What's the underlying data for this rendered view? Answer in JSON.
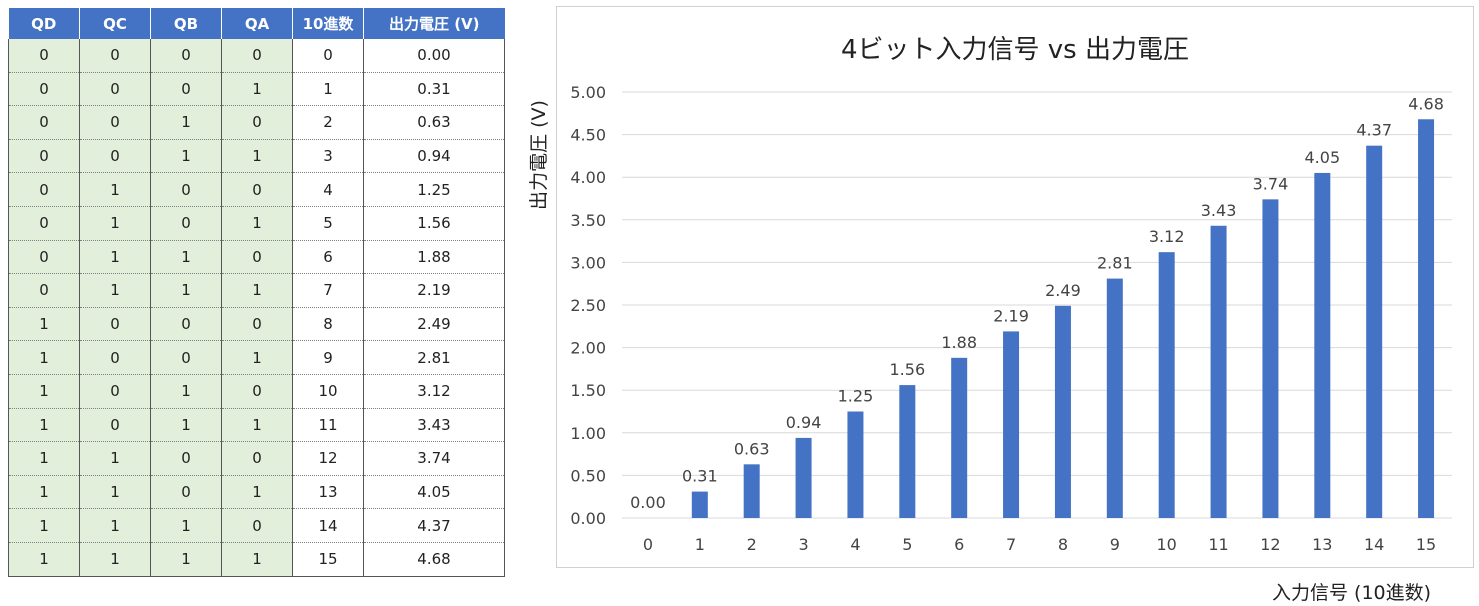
{
  "table": {
    "headers": [
      "QD",
      "QC",
      "QB",
      "QA",
      "10進数",
      "出力電圧 (V)"
    ],
    "rows": [
      [
        "0",
        "0",
        "0",
        "0",
        "0",
        "0.00"
      ],
      [
        "0",
        "0",
        "0",
        "1",
        "1",
        "0.31"
      ],
      [
        "0",
        "0",
        "1",
        "0",
        "2",
        "0.63"
      ],
      [
        "0",
        "0",
        "1",
        "1",
        "3",
        "0.94"
      ],
      [
        "0",
        "1",
        "0",
        "0",
        "4",
        "1.25"
      ],
      [
        "0",
        "1",
        "0",
        "1",
        "5",
        "1.56"
      ],
      [
        "0",
        "1",
        "1",
        "0",
        "6",
        "1.88"
      ],
      [
        "0",
        "1",
        "1",
        "1",
        "7",
        "2.19"
      ],
      [
        "1",
        "0",
        "0",
        "0",
        "8",
        "2.49"
      ],
      [
        "1",
        "0",
        "0",
        "1",
        "9",
        "2.81"
      ],
      [
        "1",
        "0",
        "1",
        "0",
        "10",
        "3.12"
      ],
      [
        "1",
        "0",
        "1",
        "1",
        "11",
        "3.43"
      ],
      [
        "1",
        "1",
        "0",
        "0",
        "12",
        "3.74"
      ],
      [
        "1",
        "1",
        "0",
        "1",
        "13",
        "4.05"
      ],
      [
        "1",
        "1",
        "1",
        "0",
        "14",
        "4.37"
      ],
      [
        "1",
        "1",
        "1",
        "1",
        "15",
        "4.68"
      ]
    ]
  },
  "colors": {
    "header_bg": "#4472c4",
    "bit_cell_bg": "#e2efda",
    "bar": "#4472c4",
    "gridline": "#d9d9d9"
  },
  "chart_data": {
    "type": "bar",
    "title": "4ビット入力信号 vs 出力電圧",
    "xlabel": "入力信号 (10進数)",
    "ylabel": "出力電圧 (V)",
    "categories": [
      "0",
      "1",
      "2",
      "3",
      "4",
      "5",
      "6",
      "7",
      "8",
      "9",
      "10",
      "11",
      "12",
      "13",
      "14",
      "15"
    ],
    "values": [
      0.0,
      0.31,
      0.63,
      0.94,
      1.25,
      1.56,
      1.88,
      2.19,
      2.49,
      2.81,
      3.12,
      3.43,
      3.74,
      4.05,
      4.37,
      4.68
    ],
    "data_labels": [
      "0.00",
      "0.31",
      "0.63",
      "0.94",
      "1.25",
      "1.56",
      "1.88",
      "2.19",
      "2.49",
      "2.81",
      "3.12",
      "3.43",
      "3.74",
      "4.05",
      "4.37",
      "4.68"
    ],
    "yticks": [
      "0.00",
      "0.50",
      "1.00",
      "1.50",
      "2.00",
      "2.50",
      "3.00",
      "3.50",
      "4.00",
      "4.50",
      "5.00"
    ],
    "ylim": [
      0,
      5
    ],
    "grid": true,
    "legend": "none"
  }
}
